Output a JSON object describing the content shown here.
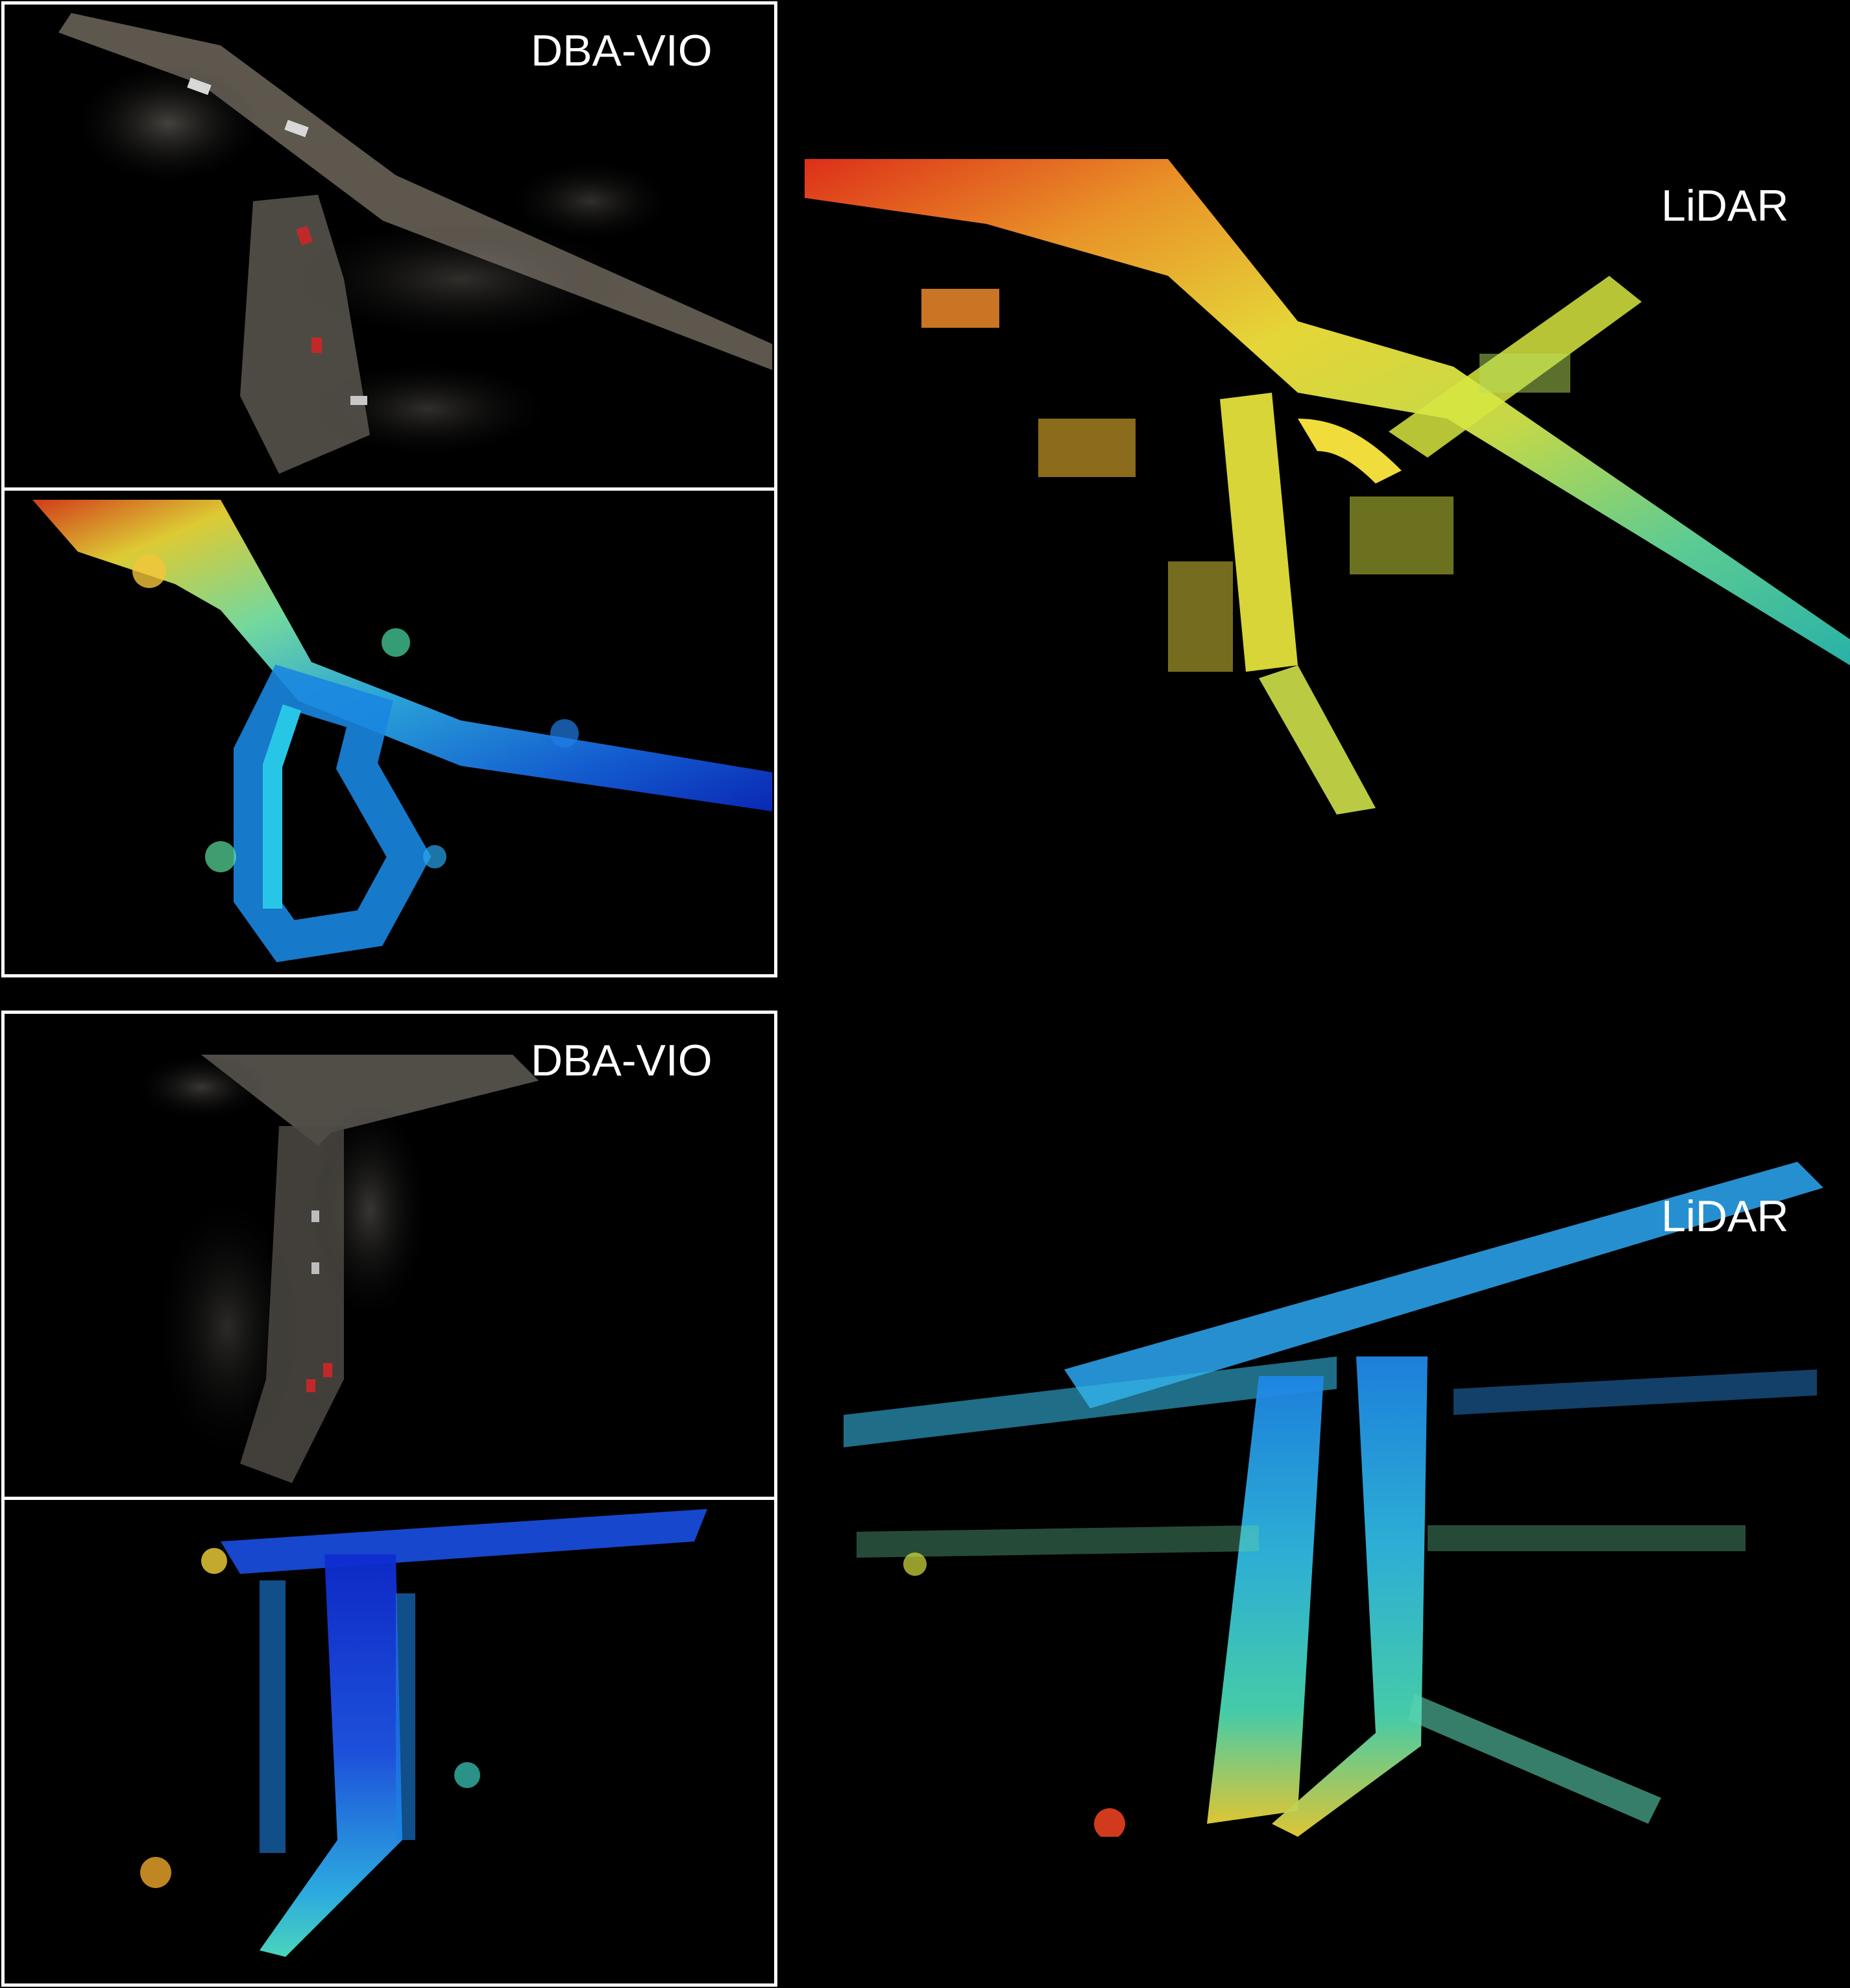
{
  "figure": {
    "top_group": {
      "vio_label": "DBA-VIO",
      "lidar_label": "LiDAR"
    },
    "bottom_group": {
      "vio_label": "DBA-VIO",
      "lidar_label": "LiDAR"
    }
  },
  "colors": {
    "background": "#000000",
    "frame": "#ffffff",
    "label": "#ffffff"
  }
}
